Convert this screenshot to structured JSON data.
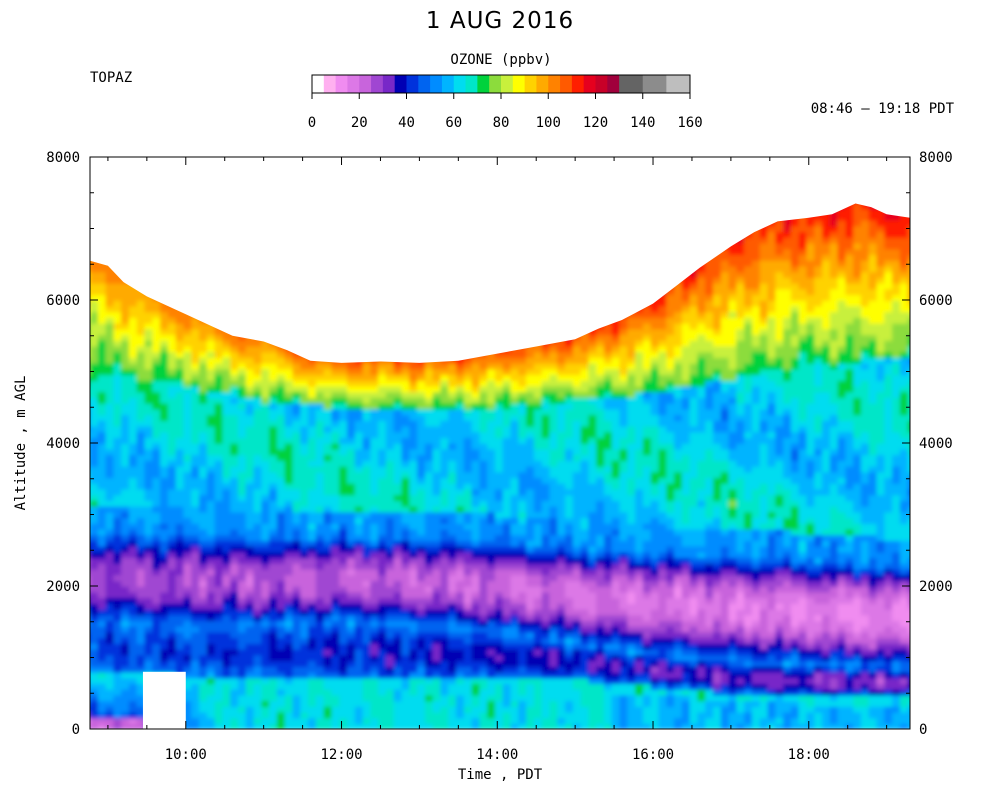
{
  "chart_data": {
    "type": "heatmap",
    "title": "1 AUG 2016",
    "station": "TOPAZ",
    "time_range": "08:46 – 19:18 PDT",
    "xlabel": "Time , PDT",
    "ylabel": "Altitude , m AGL",
    "x_ticks": [
      "10:00",
      "12:00",
      "14:00",
      "16:00",
      "18:00"
    ],
    "x_tick_hours": [
      10,
      12,
      14,
      16,
      18
    ],
    "xlim_hours": [
      8.77,
      19.3
    ],
    "y_ticks": [
      0,
      2000,
      4000,
      6000,
      8000
    ],
    "ylim": [
      0,
      8000
    ],
    "colorbar": {
      "label": "OZONE (ppbv)",
      "ticks": [
        0,
        20,
        40,
        60,
        80,
        100,
        120,
        140,
        160
      ],
      "range": [
        0,
        160
      ],
      "colors": [
        "#ffffff",
        "#ffb0f0",
        "#f08cf0",
        "#dc78e6",
        "#c864dc",
        "#a046d2",
        "#7828c8",
        "#0000b4",
        "#0032dc",
        "#0064f0",
        "#008cff",
        "#00b4ff",
        "#00dcf0",
        "#00e6c8",
        "#00d23c",
        "#8cdc3c",
        "#c8f03c",
        "#ffff00",
        "#ffd200",
        "#ffaa00",
        "#ff8200",
        "#ff5a00",
        "#ff1e00",
        "#e6001e",
        "#c80028",
        "#a0003c",
        "#646464",
        "#646464",
        "#8c8c8c",
        "#8c8c8c",
        "#bebebe",
        "#bebebe"
      ]
    },
    "bottom_gap": {
      "start_hour": 9.45,
      "end_hour": 10.0,
      "top_altitude": 800
    },
    "top_of_data": {
      "hours": [
        8.77,
        9.0,
        9.2,
        9.5,
        9.8,
        10.0,
        10.3,
        10.6,
        11.0,
        11.3,
        11.6,
        12.0,
        12.5,
        13.0,
        13.5,
        14.0,
        14.5,
        15.0,
        15.3,
        15.6,
        16.0,
        16.3,
        16.6,
        17.0,
        17.3,
        17.6,
        18.0,
        18.3,
        18.6,
        18.8,
        19.0,
        19.3
      ],
      "altitudes": [
        6550,
        6480,
        6250,
        6050,
        5900,
        5800,
        5650,
        5500,
        5420,
        5300,
        5150,
        5120,
        5140,
        5120,
        5150,
        5250,
        5350,
        5450,
        5600,
        5720,
        5950,
        6200,
        6450,
        6750,
        6950,
        7100,
        7150,
        7200,
        7350,
        7300,
        7200,
        7150
      ]
    },
    "layers": [
      {
        "name": "surface-layer",
        "times": [
          8.77,
          9.5,
          10.0,
          11.0,
          12.0,
          13.0,
          14.0,
          15.0,
          16.0,
          17.0,
          18.0,
          19.3
        ],
        "altitudes": [
          0,
          0,
          0,
          0,
          0,
          0,
          0,
          0,
          0,
          0,
          0,
          0
        ]
      },
      {
        "name": "boundary-layer-top",
        "times": [
          8.77,
          9.5,
          10.0,
          11.0,
          12.0,
          13.0,
          14.0,
          15.0,
          16.0,
          17.0,
          18.0,
          19.3
        ],
        "altitudes": [
          800,
          780,
          750,
          720,
          700,
          700,
          720,
          700,
          600,
          500,
          450,
          450
        ]
      },
      {
        "name": "residual-layer-top",
        "times": [
          8.77,
          9.5,
          10.0,
          11.0,
          12.0,
          13.0,
          14.0,
          15.0,
          16.0,
          17.0,
          18.0,
          19.3
        ],
        "altitudes": [
          1500,
          1450,
          1420,
          1450,
          1500,
          1450,
          1350,
          1200,
          1050,
          950,
          900,
          850
        ]
      },
      {
        "name": "clean-layer-top",
        "times": [
          8.77,
          9.5,
          10.0,
          11.0,
          12.0,
          13.0,
          14.0,
          15.0,
          16.0,
          17.0,
          18.0,
          19.3
        ],
        "altitudes": [
          2850,
          2850,
          2850,
          2800,
          2800,
          2800,
          2750,
          2650,
          2600,
          2550,
          2500,
          2400
        ]
      },
      {
        "name": "free-troposphere-top",
        "times": [
          8.77,
          9.5,
          10.0,
          11.0,
          12.0,
          13.0,
          14.0,
          15.0,
          16.0,
          17.0,
          18.0,
          19.3
        ],
        "altitudes": [
          5000,
          4900,
          4800,
          4600,
          4500,
          4500,
          4500,
          4600,
          4700,
          4900,
          5100,
          5200
        ]
      }
    ]
  }
}
